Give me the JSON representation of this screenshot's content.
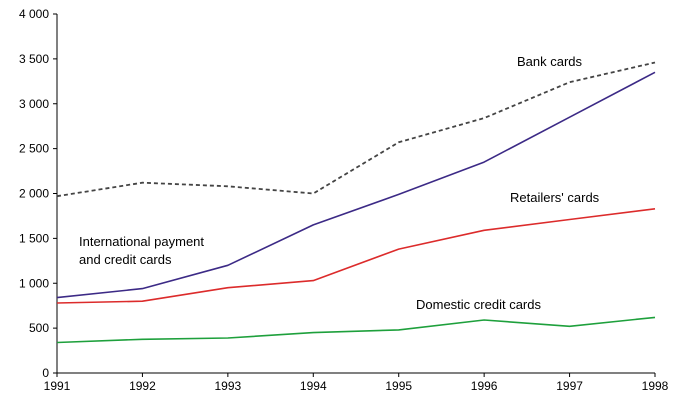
{
  "chart_data": {
    "type": "line",
    "title": "",
    "xlabel": "",
    "ylabel": "",
    "x": [
      1991,
      1992,
      1993,
      1994,
      1995,
      1996,
      1997,
      1998
    ],
    "ylim": [
      0,
      4000
    ],
    "yticks": [
      "0",
      "500",
      "1 000",
      "1 500",
      "2 000",
      "2 500",
      "3 000",
      "3 500",
      "4 000"
    ],
    "xticks": [
      "1991",
      "1992",
      "1993",
      "1994",
      "1995",
      "1996",
      "1997",
      "1998"
    ],
    "grid": false,
    "legend": "none",
    "series": [
      {
        "name": "Bank cards",
        "label_lines": [
          "Bank cards"
        ],
        "color": "#444444",
        "dash": "dotted",
        "values": [
          1970,
          2120,
          2080,
          2000,
          2570,
          2840,
          3240,
          3460
        ]
      },
      {
        "name": "International payment and credit cards",
        "label_lines": [
          "International payment",
          "and credit cards"
        ],
        "color": "#3c2a86",
        "dash": "solid",
        "values": [
          840,
          940,
          1200,
          1650,
          1990,
          2350,
          2850,
          3350
        ]
      },
      {
        "name": "Retailers' cards",
        "label_lines": [
          "Retailers' cards"
        ],
        "color": "#dc2b2b",
        "dash": "solid",
        "values": [
          780,
          800,
          950,
          1030,
          1380,
          1590,
          1710,
          1830
        ]
      },
      {
        "name": "Domestic credit cards",
        "label_lines": [
          "Domestic credit cards"
        ],
        "color": "#1ea03c",
        "dash": "solid",
        "values": [
          340,
          375,
          390,
          450,
          480,
          590,
          520,
          620
        ]
      }
    ]
  }
}
